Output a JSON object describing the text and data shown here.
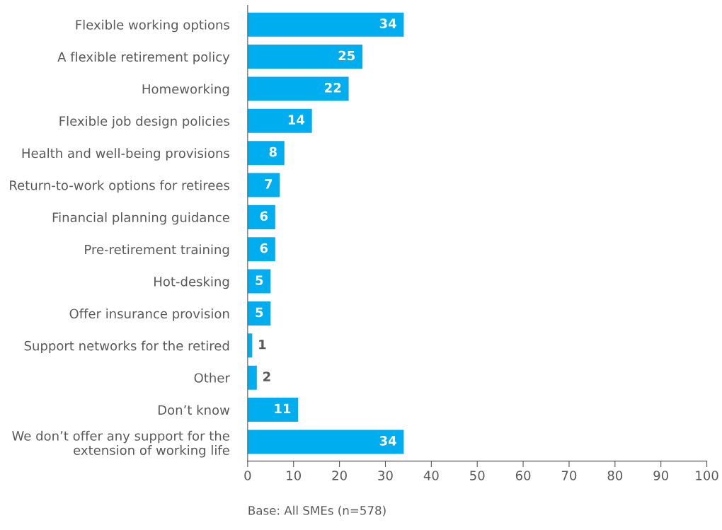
{
  "chart_data": {
    "type": "bar",
    "orientation": "horizontal",
    "categories": [
      "Flexible working options",
      "A flexible retirement policy",
      "Homeworking",
      "Flexible job design policies",
      "Health and well-being provisions",
      "Return-to-work options for retirees",
      "Financial planning guidance",
      "Pre-retirement training",
      "Hot-desking",
      "Offer insurance provision",
      "Support networks for the retired",
      "Other",
      "Don’t know",
      "We don’t offer any support for the\nextension of working life"
    ],
    "values": [
      34,
      25,
      22,
      14,
      8,
      7,
      6,
      6,
      5,
      5,
      1,
      2,
      11,
      34
    ],
    "color": "#00aeef",
    "data_labels": true,
    "xlim": [
      0,
      100
    ],
    "xticks": [
      0,
      10,
      20,
      30,
      40,
      50,
      60,
      70,
      80,
      90,
      100
    ],
    "grid": false,
    "legend": false,
    "annotations": [
      "Base: All SMEs (n=578)"
    ]
  }
}
